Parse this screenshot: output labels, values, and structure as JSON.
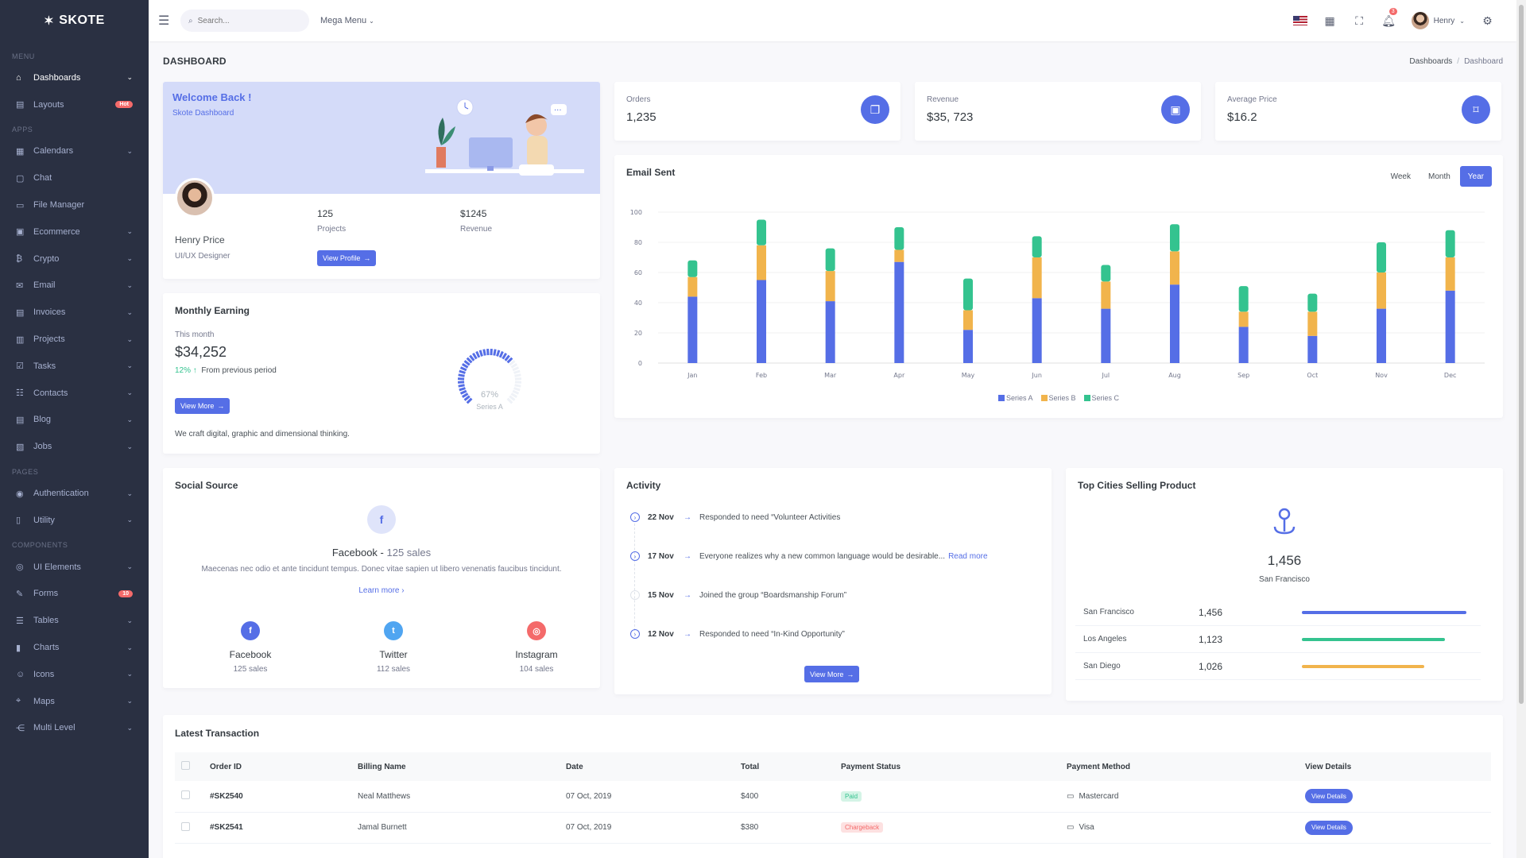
{
  "app": {
    "logo": "SKOTE"
  },
  "sidebar": {
    "menu_title": "Menu",
    "apps_title": "Apps",
    "pages_title": "Pages",
    "components_title": "Components",
    "items_menu": [
      {
        "label": "Dashboards",
        "icon": "home-icon"
      },
      {
        "label": "Layouts",
        "icon": "layout-icon",
        "badge": "Hot"
      }
    ],
    "items_apps": [
      {
        "label": "Calendars"
      },
      {
        "label": "Chat"
      },
      {
        "label": "File Manager"
      },
      {
        "label": "Ecommerce"
      },
      {
        "label": "Crypto"
      },
      {
        "label": "Email"
      },
      {
        "label": "Invoices"
      },
      {
        "label": "Projects"
      },
      {
        "label": "Tasks"
      },
      {
        "label": "Contacts"
      },
      {
        "label": "Blog"
      },
      {
        "label": "Jobs"
      }
    ],
    "items_pages": [
      {
        "label": "Authentication"
      },
      {
        "label": "Utility"
      }
    ],
    "items_components": [
      {
        "label": "UI Elements"
      },
      {
        "label": "Forms",
        "badge": "10"
      },
      {
        "label": "Tables"
      },
      {
        "label": "Charts"
      },
      {
        "label": "Icons"
      },
      {
        "label": "Maps"
      },
      {
        "label": "Multi Level"
      }
    ]
  },
  "topbar": {
    "search_placeholder": "Search...",
    "mega_menu": "Mega Menu",
    "notification_count": "3",
    "user_name": "Henry"
  },
  "page": {
    "title": "DASHBOARD",
    "breadcrumb": [
      "Dashboards",
      "Dashboard"
    ]
  },
  "welcome": {
    "title": "Welcome Back !",
    "subtitle": "Skote Dashboard",
    "name": "Henry Price",
    "role": "UI/UX Designer",
    "projects_value": "125",
    "projects_label": "Projects",
    "revenue_value": "$1245",
    "revenue_label": "Revenue",
    "button": "View Profile"
  },
  "stats": [
    {
      "title": "Orders",
      "value": "1,235"
    },
    {
      "title": "Revenue",
      "value": "$35, 723"
    },
    {
      "title": "Average Price",
      "value": "$16.2"
    }
  ],
  "monthly": {
    "title": "Monthly Earning",
    "period": "This month",
    "value": "$34,252",
    "change": "12%",
    "change_note": "From previous period",
    "button": "View More",
    "footer": "We craft digital, graphic and dimensional thinking.",
    "gauge_value": "67%",
    "gauge_label": "Series A",
    "gauge_fraction": 0.67
  },
  "email_chart": {
    "title": "Email Sent",
    "tabs": [
      "Week",
      "Month",
      "Year"
    ],
    "active_tab": "Year"
  },
  "chart_data": {
    "type": "bar",
    "stacked": true,
    "title": "Email Sent",
    "categories": [
      "Jan",
      "Feb",
      "Mar",
      "Apr",
      "May",
      "Jun",
      "Jul",
      "Aug",
      "Sep",
      "Oct",
      "Nov",
      "Dec"
    ],
    "series": [
      {
        "name": "Series A",
        "color": "#556ee6",
        "values": [
          44,
          55,
          41,
          67,
          22,
          43,
          36,
          52,
          24,
          18,
          36,
          48
        ]
      },
      {
        "name": "Series B",
        "color": "#f1b44c",
        "values": [
          13,
          23,
          20,
          8,
          13,
          27,
          18,
          22,
          10,
          16,
          24,
          22
        ]
      },
      {
        "name": "Series C",
        "color": "#34c38f",
        "values": [
          11,
          17,
          15,
          15,
          21,
          14,
          11,
          18,
          17,
          12,
          20,
          18
        ]
      }
    ],
    "ylim": [
      0,
      100
    ],
    "yticks": [
      0,
      20,
      40,
      60,
      80,
      100
    ],
    "legend": "bottom",
    "grid": true
  },
  "social": {
    "title": "Social Source",
    "headline_name": "Facebook - ",
    "headline_sales": "125 sales",
    "description": "Maecenas nec odio et ante tincidunt tempus. Donec vitae sapien ut libero venenatis faucibus tincidunt.",
    "learn_more": "Learn more",
    "items": [
      {
        "name": "Facebook",
        "sales": "125 sales",
        "color": "#556ee6",
        "icon": "facebook-icon",
        "glyph": "f"
      },
      {
        "name": "Twitter",
        "sales": "112 sales",
        "color": "#50a5f1",
        "icon": "twitter-icon",
        "glyph": "t"
      },
      {
        "name": "Instagram",
        "sales": "104 sales",
        "color": "#f46a6a",
        "icon": "instagram-icon",
        "glyph": "◎"
      }
    ]
  },
  "activity": {
    "title": "Activity",
    "button": "View More",
    "items": [
      {
        "date": "22 Nov",
        "text": "Responded to need “Volunteer Activities"
      },
      {
        "date": "17 Nov",
        "text": "Everyone realizes why a new common language would be desirable...",
        "link": "Read more"
      },
      {
        "date": "15 Nov",
        "text": "Joined the group “Boardsmanship Forum”"
      },
      {
        "date": "12 Nov",
        "text": "Responded to need “In-Kind Opportunity”"
      }
    ]
  },
  "cities": {
    "title": "Top Cities Selling Product",
    "top_value": "1,456",
    "top_city": "San Francisco",
    "items": [
      {
        "city": "San Francisco",
        "value": "1,456",
        "fraction": 0.94,
        "color": "#556ee6"
      },
      {
        "city": "Los Angeles",
        "value": "1,123",
        "fraction": 0.82,
        "color": "#34c38f"
      },
      {
        "city": "San Diego",
        "value": "1,026",
        "fraction": 0.7,
        "color": "#f1b44c"
      }
    ]
  },
  "transactions": {
    "title": "Latest Transaction",
    "columns": [
      "Order ID",
      "Billing Name",
      "Date",
      "Total",
      "Payment Status",
      "Payment Method",
      "View Details"
    ],
    "rows": [
      {
        "id": "#SK2540",
        "name": "Neal Matthews",
        "date": "07 Oct, 2019",
        "total": "$400",
        "status": "Paid",
        "status_type": "paid",
        "method": "Mastercard",
        "details": "View Details"
      },
      {
        "id": "#SK2541",
        "name": "Jamal Burnett",
        "date": "07 Oct, 2019",
        "total": "$380",
        "status": "Chargeback",
        "status_type": "chargeback",
        "method": "Visa",
        "details": "View Details"
      }
    ]
  }
}
